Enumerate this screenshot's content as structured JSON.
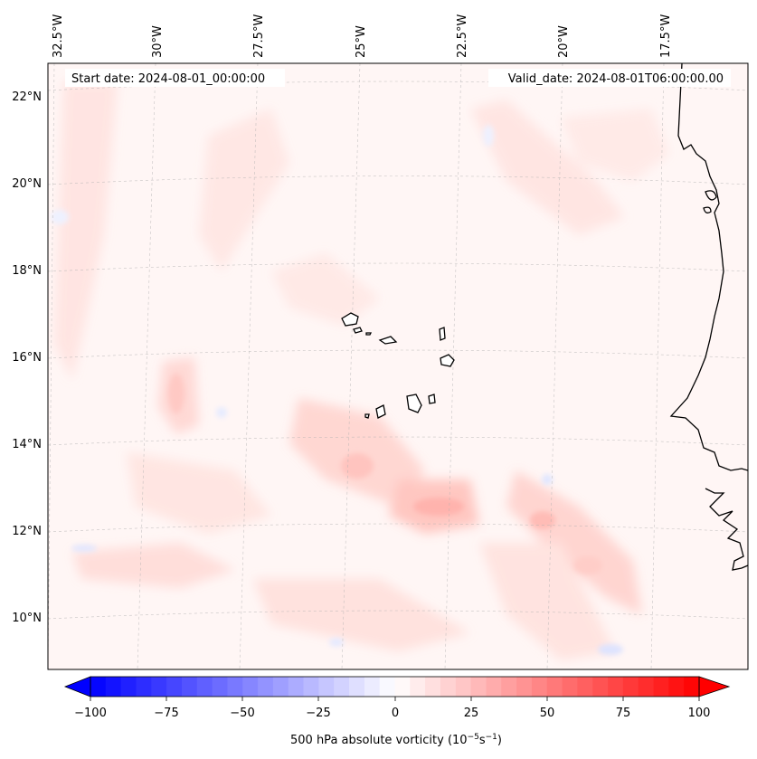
{
  "map": {
    "start_date_text": "Start date: 2024-08-01_00:00:00",
    "valid_date_text": "Valid_date: 2024-08-01T06:00:00.00",
    "lon_labels": [
      "32.5°W",
      "30°W",
      "27.5°W",
      "25°W",
      "22.5°W",
      "20°W",
      "17.5°W"
    ],
    "lat_labels": [
      "22°N",
      "20°N",
      "18°N",
      "16°N",
      "14°N",
      "12°N",
      "10°N"
    ]
  },
  "colorbar": {
    "label_text": "500 hPa absolute vorticity (10",
    "label_exp1": "−5",
    "label_mid": "s",
    "label_exp2": "−1",
    "label_close": ")",
    "ticks": [
      "−100",
      "−75",
      "−50",
      "−25",
      "0",
      "25",
      "50",
      "75",
      "100"
    ],
    "min_color": "#0000ff",
    "mid_color": "#ffffff",
    "max_color": "#ff0000"
  },
  "colors": {
    "background_field": "#fff6f5",
    "coastline": "#000000",
    "gridline": "#b0b0b0"
  }
}
